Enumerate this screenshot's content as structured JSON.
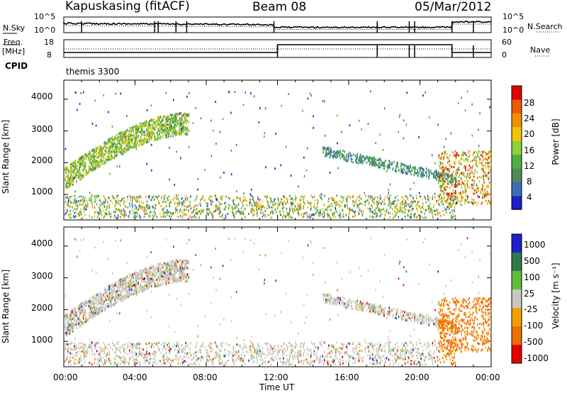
{
  "header": {
    "station": "Kapuskasing (fitACF)",
    "beam": "Beam 08",
    "date": "05/Mar/2012"
  },
  "noise_panel": {
    "left_label": "N.Sky",
    "right_label": "N.Search",
    "left_ticks": [
      "10^5",
      "10^0"
    ],
    "right_ticks": [
      "10^5",
      "10^0"
    ]
  },
  "freq_panel": {
    "left_label_1": "Freq.",
    "left_label_2": "[MHz]",
    "right_label": "Nave",
    "left_ticks": [
      "18",
      "8"
    ],
    "right_ticks": [
      "60",
      "0"
    ]
  },
  "cpid": {
    "label": "CPID",
    "value": "themis 3300"
  },
  "colors": {
    "power_scale": [
      "#1e1ecd",
      "#3a6fb4",
      "#4e8a5c",
      "#4faf45",
      "#8fcf3c",
      "#f5c400",
      "#f29000",
      "#ee5a00",
      "#e00000"
    ],
    "velocity_scale": [
      "#1e1ecd",
      "#2f7a4a",
      "#5fbf3a",
      "#c8c8c0",
      "#f5a000",
      "#ef6e00",
      "#e40000"
    ]
  },
  "chart_data": [
    {
      "type": "heatmap",
      "title": "",
      "xlabel": "Time UT",
      "ylabel": "Slant Range [km]",
      "x_ticks": [
        "00:00",
        "04:00",
        "08:00",
        "12:00",
        "16:00",
        "20:00",
        "00:00"
      ],
      "y_ticks": [
        "1000",
        "2000",
        "3000",
        "4000"
      ],
      "ylim": [
        200,
        4600
      ],
      "colorbar": {
        "label": "Power [dB]",
        "ticks": [
          "4",
          "8",
          "12",
          "16",
          "20",
          "24",
          "28"
        ],
        "range": [
          0,
          30
        ]
      }
    },
    {
      "type": "heatmap",
      "title": "",
      "xlabel": "Time UT",
      "ylabel": "Slant Range [km]",
      "x_ticks": [
        "00:00",
        "04:00",
        "08:00",
        "12:00",
        "16:00",
        "20:00",
        "00:00"
      ],
      "y_ticks": [
        "1000",
        "2000",
        "3000",
        "4000"
      ],
      "ylim": [
        200,
        4600
      ],
      "colorbar": {
        "label": "Velocity [m s⁻¹]",
        "ticks": [
          "1000",
          "500",
          "100",
          "25",
          "-25",
          "-100",
          "-500",
          "-1000"
        ]
      }
    }
  ]
}
